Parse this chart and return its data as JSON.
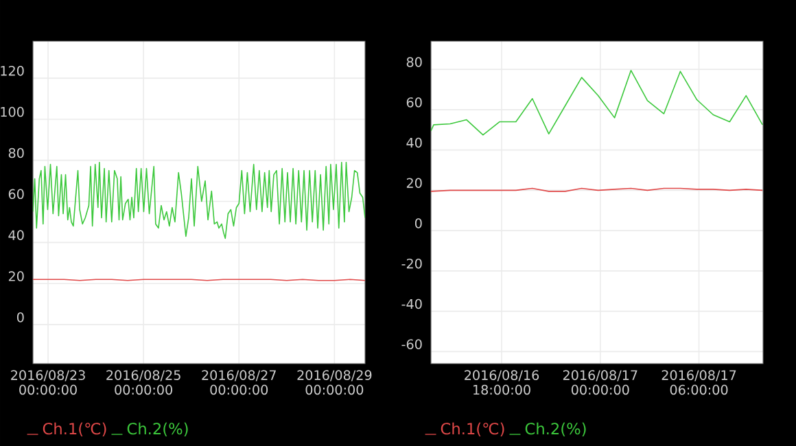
{
  "chart_data": [
    {
      "type": "line",
      "xlim": [
        "2016-08-22T16:24",
        "2016-08-29T15:24"
      ],
      "ylim": [
        -19,
        138
      ],
      "xticks": [
        {
          "value": "2016-08-23T00:00",
          "label": "2016/08/23 00:00:00"
        },
        {
          "value": "2016-08-25T00:00",
          "label": "2016/08/25 00:00:00"
        },
        {
          "value": "2016-08-27T00:00",
          "label": "2016/08/27 00:00:00"
        },
        {
          "value": "2016-08-29T00:00",
          "label": "2016/08/29 00:00:00"
        }
      ],
      "yticks": [
        0,
        20,
        40,
        60,
        80,
        100,
        120
      ],
      "grid": true,
      "legend": "bottom",
      "series": [
        {
          "name": "Ch.1(℃)",
          "color": "#e04848",
          "x": [
            "2016-08-22T16:24",
            "2016-08-23T00:00",
            "2016-08-23T08:00",
            "2016-08-23T16:00",
            "2016-08-24T00:00",
            "2016-08-24T08:00",
            "2016-08-24T16:00",
            "2016-08-25T00:00",
            "2016-08-25T08:00",
            "2016-08-25T16:00",
            "2016-08-26T00:00",
            "2016-08-26T08:00",
            "2016-08-26T16:00",
            "2016-08-27T00:00",
            "2016-08-27T08:00",
            "2016-08-27T16:00",
            "2016-08-28T00:00",
            "2016-08-28T08:00",
            "2016-08-28T16:00",
            "2016-08-29T00:00",
            "2016-08-29T08:00",
            "2016-08-29T15:24"
          ],
          "values": [
            22,
            22,
            22,
            21.5,
            22,
            22,
            21.5,
            22,
            22,
            22,
            22,
            21.5,
            22,
            22,
            22,
            22,
            21.5,
            22,
            21.5,
            21.5,
            22,
            21.5
          ]
        },
        {
          "name": "Ch.2(%)",
          "color": "#3cc83c",
          "x": [
            "2016-08-22T16:24",
            "2016-08-22T17:18",
            "2016-08-22T18:12",
            "2016-08-22T19:36",
            "2016-08-22T20:30",
            "2016-08-22T21:30",
            "2016-08-22T22:24",
            "2016-08-22T23:48",
            "2016-08-23T01:12",
            "2016-08-23T02:30",
            "2016-08-23T04:24",
            "2016-08-23T05:18",
            "2016-08-23T06:42",
            "2016-08-23T07:36",
            "2016-08-23T08:48",
            "2016-08-23T09:54",
            "2016-08-23T10:48",
            "2016-08-23T11:42",
            "2016-08-23T12:42",
            "2016-08-23T15:00",
            "2016-08-23T15:54",
            "2016-08-23T17:18",
            "2016-08-23T18:42",
            "2016-08-23T20:30",
            "2016-08-23T21:24",
            "2016-08-23T22:18",
            "2016-08-23T23:42",
            "2016-08-24T01:06",
            "2016-08-24T01:48",
            "2016-08-24T02:54",
            "2016-08-24T04:18",
            "2016-08-24T05:12",
            "2016-08-24T06:36",
            "2016-08-24T08:00",
            "2016-08-24T09:24",
            "2016-08-24T10:48",
            "2016-08-24T11:42",
            "2016-08-24T12:36",
            "2016-08-24T13:30",
            "2016-08-24T14:54",
            "2016-08-24T16:18",
            "2016-08-24T17:12",
            "2016-08-24T18:06",
            "2016-08-24T19:06",
            "2016-08-24T20:24",
            "2016-08-24T21:24",
            "2016-08-24T22:48",
            "2016-08-25T00:06",
            "2016-08-25T01:30",
            "2016-08-25T02:54",
            "2016-08-25T05:12",
            "2016-08-25T06:06",
            "2016-08-25T07:30",
            "2016-08-25T08:54",
            "2016-08-25T10:18",
            "2016-08-25T11:36",
            "2016-08-25T13:00",
            "2016-08-25T14:24",
            "2016-08-25T15:48",
            "2016-08-25T17:36",
            "2016-08-25T19:00",
            "2016-08-25T21:18",
            "2016-08-25T22:42",
            "2016-08-26T00:06",
            "2016-08-26T01:30",
            "2016-08-26T03:18",
            "2016-08-26T05:12",
            "2016-08-26T07:00",
            "2016-08-26T08:24",
            "2016-08-26T10:12",
            "2016-08-26T11:36",
            "2016-08-26T13:00",
            "2016-08-26T13:54",
            "2016-08-26T15:18",
            "2016-08-26T16:12",
            "2016-08-26T17:06",
            "2016-08-26T18:30",
            "2016-08-26T19:54",
            "2016-08-26T21:18",
            "2016-08-26T22:42",
            "2016-08-27T00:00",
            "2016-08-27T01:24",
            "2016-08-27T02:48",
            "2016-08-27T04:12",
            "2016-08-27T05:36",
            "2016-08-27T07:24",
            "2016-08-27T08:48",
            "2016-08-27T10:12",
            "2016-08-27T11:36",
            "2016-08-27T12:54",
            "2016-08-27T14:18",
            "2016-08-27T15:12",
            "2016-08-27T16:12",
            "2016-08-27T17:30",
            "2016-08-27T18:54",
            "2016-08-27T20:18",
            "2016-08-27T21:42",
            "2016-08-27T23:06",
            "2016-08-28T00:24",
            "2016-08-28T01:48",
            "2016-08-28T03:12",
            "2016-08-28T04:36",
            "2016-08-28T06:00",
            "2016-08-28T07:24",
            "2016-08-28T08:42",
            "2016-08-28T10:06",
            "2016-08-28T11:30",
            "2016-08-28T12:54",
            "2016-08-28T14:18",
            "2016-08-28T15:36",
            "2016-08-28T17:00",
            "2016-08-28T18:24",
            "2016-08-28T19:48",
            "2016-08-28T21:12",
            "2016-08-28T22:06",
            "2016-08-28T23:30",
            "2016-08-29T00:54",
            "2016-08-29T02:12",
            "2016-08-29T03:36",
            "2016-08-29T05:00",
            "2016-08-29T05:54",
            "2016-08-29T07:18",
            "2016-08-29T08:42",
            "2016-08-29T10:06",
            "2016-08-29T11:30",
            "2016-08-29T12:48",
            "2016-08-29T14:12",
            "2016-08-29T15:24"
          ],
          "values": [
            55,
            71,
            47,
            71,
            75,
            49,
            77,
            56,
            78,
            54,
            77,
            53,
            73,
            54,
            73,
            51,
            57,
            50,
            48,
            75,
            56,
            49,
            52,
            58,
            77,
            48,
            78,
            57,
            79,
            52,
            76,
            50,
            75,
            50,
            75,
            71,
            51,
            72,
            51,
            59,
            61,
            51,
            62,
            52,
            76,
            55,
            76,
            55,
            76,
            54,
            77,
            49,
            47,
            58,
            51,
            55,
            48,
            57,
            50,
            74,
            64,
            43,
            52,
            71,
            48,
            77,
            60,
            70,
            51,
            65,
            49,
            50,
            47,
            49,
            45,
            42,
            54,
            56,
            48,
            57,
            59,
            75,
            54,
            74,
            55,
            78,
            56,
            75,
            55,
            74,
            57,
            75,
            55,
            73,
            75,
            49,
            76,
            50,
            74,
            50,
            76,
            49,
            75,
            50,
            75,
            46,
            75,
            50,
            75,
            47,
            73,
            46,
            77,
            49,
            78,
            56,
            78,
            47,
            79,
            50,
            79,
            55,
            62,
            75,
            74,
            64,
            62,
            52
          ]
        }
      ]
    },
    {
      "type": "line",
      "xlim": [
        "2016-08-16T13:42",
        "2016-08-17T09:54"
      ],
      "ylim": [
        -66,
        94
      ],
      "xticks": [
        {
          "value": "2016-08-16T18:00",
          "label": "2016/08/16 18:00:00"
        },
        {
          "value": "2016-08-17T00:00",
          "label": "2016/08/17 00:00:00"
        },
        {
          "value": "2016-08-17T06:00",
          "label": "2016/08/17 06:00:00"
        }
      ],
      "yticks": [
        -60,
        -40,
        -20,
        0,
        20,
        40,
        60,
        80
      ],
      "grid": true,
      "legend": "bottom",
      "series": [
        {
          "name": "Ch.1(℃)",
          "color": "#e04848",
          "x": [
            "2016-08-16T13:42",
            "2016-08-16T14:52",
            "2016-08-16T15:52",
            "2016-08-16T16:52",
            "2016-08-16T17:52",
            "2016-08-16T18:52",
            "2016-08-16T19:52",
            "2016-08-16T20:52",
            "2016-08-16T21:52",
            "2016-08-16T22:52",
            "2016-08-16T23:52",
            "2016-08-17T00:52",
            "2016-08-17T01:52",
            "2016-08-17T02:52",
            "2016-08-17T03:52",
            "2016-08-17T04:52",
            "2016-08-17T05:52",
            "2016-08-17T06:52",
            "2016-08-17T07:52",
            "2016-08-17T08:52",
            "2016-08-17T09:52"
          ],
          "values": [
            19.5,
            20,
            20,
            20,
            20,
            20,
            21,
            19.5,
            19.5,
            21,
            20,
            20.5,
            21,
            20,
            21,
            21,
            20.5,
            20.5,
            20,
            20.5,
            20
          ]
        },
        {
          "name": "Ch.2(%)",
          "color": "#3cc83c",
          "x": [
            "2016-08-16T13:42",
            "2016-08-16T13:52",
            "2016-08-16T14:52",
            "2016-08-16T15:52",
            "2016-08-16T16:52",
            "2016-08-16T17:52",
            "2016-08-16T18:52",
            "2016-08-16T19:52",
            "2016-08-16T20:52",
            "2016-08-16T21:52",
            "2016-08-16T22:52",
            "2016-08-16T23:52",
            "2016-08-17T00:52",
            "2016-08-17T01:52",
            "2016-08-17T02:52",
            "2016-08-17T03:52",
            "2016-08-17T04:52",
            "2016-08-17T05:52",
            "2016-08-17T06:52",
            "2016-08-17T07:52",
            "2016-08-17T08:52",
            "2016-08-17T09:52"
          ],
          "values": [
            49.5,
            52.5,
            53,
            55,
            47.5,
            54,
            54,
            65.5,
            48,
            62,
            76,
            67,
            56,
            79.5,
            64.5,
            58,
            79,
            65,
            57.5,
            54,
            67,
            52.5
          ]
        }
      ]
    }
  ]
}
